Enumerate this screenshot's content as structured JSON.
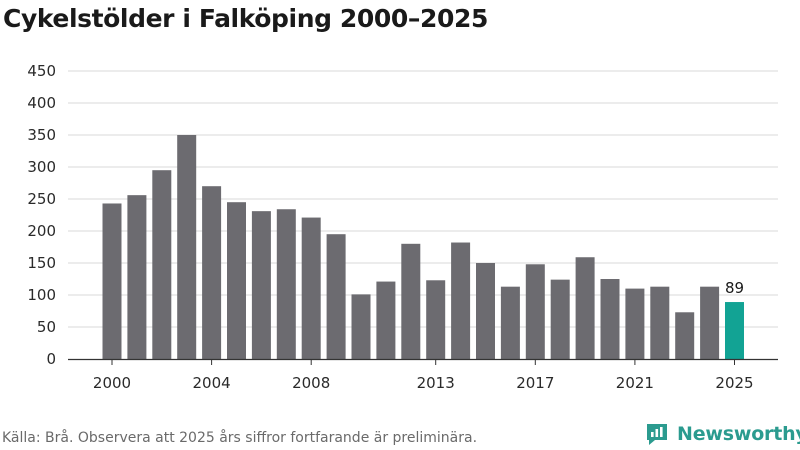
{
  "title": "Cykelstölder i Falköping 2000–2025",
  "source": "Källa: Brå. Observera att 2025 års siffror fortfarande är preliminära.",
  "brand": {
    "name": "Newsworthy",
    "icon": "newsworthy-logo-icon",
    "color": "#2b9b8f"
  },
  "colors": {
    "bar": "#6c6b70",
    "highlight": "#12a394",
    "grid": "#d9d9d9",
    "axis": "#333333"
  },
  "chart_data": {
    "type": "bar",
    "title": "Cykelstölder i Falköping 2000–2025",
    "xlabel": "",
    "ylabel": "",
    "ylim": [
      0,
      450
    ],
    "yticks": [
      "0",
      "50",
      "100",
      "150",
      "200",
      "250",
      "300",
      "350",
      "400",
      "450"
    ],
    "xticks": [
      "2000",
      "2004",
      "2008",
      "2013",
      "2017",
      "2021",
      "2025"
    ],
    "grid": true,
    "categories": [
      "2000",
      "2001",
      "2002",
      "2003",
      "2004",
      "2005",
      "2006",
      "2007",
      "2008",
      "2009",
      "2010",
      "2011",
      "2012",
      "2013",
      "2014",
      "2015",
      "2016",
      "2017",
      "2018",
      "2019",
      "2020",
      "2021",
      "2022",
      "2023",
      "2024",
      "2025"
    ],
    "values": [
      243,
      256,
      295,
      350,
      270,
      245,
      231,
      234,
      221,
      195,
      101,
      121,
      180,
      123,
      182,
      150,
      113,
      148,
      124,
      159,
      125,
      110,
      113,
      73,
      113,
      89
    ],
    "highlight": {
      "category": "2025",
      "label": "89"
    }
  }
}
